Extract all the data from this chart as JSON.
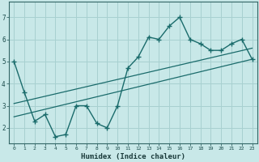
{
  "xlabel": "Humidex (Indice chaleur)",
  "bg_color": "#c8e8e8",
  "grid_color": "#a8d0d0",
  "line_color": "#1a6b6b",
  "x_data": [
    0,
    1,
    2,
    3,
    4,
    5,
    6,
    7,
    8,
    9,
    10,
    11,
    12,
    13,
    14,
    15,
    16,
    17,
    18,
    19,
    20,
    21,
    22,
    23
  ],
  "y_data": [
    5.0,
    3.6,
    2.3,
    2.6,
    1.6,
    1.7,
    3.0,
    3.0,
    2.2,
    2.0,
    3.0,
    4.7,
    5.2,
    6.1,
    6.0,
    6.6,
    7.0,
    6.0,
    5.8,
    5.5,
    5.5,
    5.8,
    6.0,
    5.1
  ],
  "ylim": [
    1.3,
    7.7
  ],
  "xlim": [
    -0.5,
    23.5
  ],
  "yticks": [
    2,
    3,
    4,
    5,
    6,
    7
  ],
  "xticks": [
    0,
    1,
    2,
    3,
    4,
    5,
    6,
    7,
    8,
    9,
    10,
    11,
    12,
    13,
    14,
    15,
    16,
    17,
    18,
    19,
    20,
    21,
    22,
    23
  ],
  "trend1_start_y": 3.1,
  "trend1_end_y": 5.6,
  "trend2_start_y": 2.5,
  "trend2_end_y": 5.1
}
